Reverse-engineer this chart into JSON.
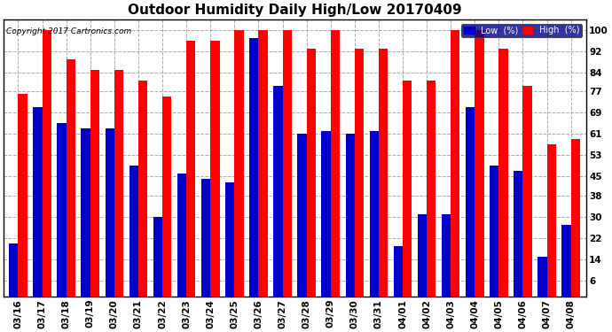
{
  "title": "Outdoor Humidity Daily High/Low 20170409",
  "copyright": "Copyright 2017 Cartronics.com",
  "dates": [
    "03/16",
    "03/17",
    "03/18",
    "03/19",
    "03/20",
    "03/21",
    "03/22",
    "03/23",
    "03/24",
    "03/25",
    "03/26",
    "03/27",
    "03/28",
    "03/29",
    "03/30",
    "03/31",
    "04/01",
    "04/02",
    "04/03",
    "04/04",
    "04/05",
    "04/06",
    "04/07",
    "04/08"
  ],
  "high": [
    76,
    100,
    89,
    85,
    85,
    81,
    75,
    96,
    96,
    100,
    100,
    100,
    93,
    100,
    93,
    93,
    81,
    81,
    100,
    100,
    93,
    79,
    57,
    59
  ],
  "low": [
    20,
    71,
    65,
    63,
    63,
    49,
    30,
    46,
    44,
    43,
    97,
    79,
    61,
    62,
    61,
    62,
    19,
    31,
    31,
    71,
    49,
    47,
    15,
    27
  ],
  "bar_width": 0.38,
  "ylim": [
    0,
    104
  ],
  "yticks": [
    6,
    14,
    22,
    30,
    38,
    45,
    53,
    61,
    69,
    77,
    84,
    92,
    100
  ],
  "high_color": "#ff0000",
  "low_color": "#0000cc",
  "bg_color": "#ffffff",
  "grid_color": "#aaaaaa",
  "title_fontsize": 11,
  "tick_fontsize": 7.5,
  "legend_low_label": "Low  (%)",
  "legend_high_label": "High  (%)"
}
